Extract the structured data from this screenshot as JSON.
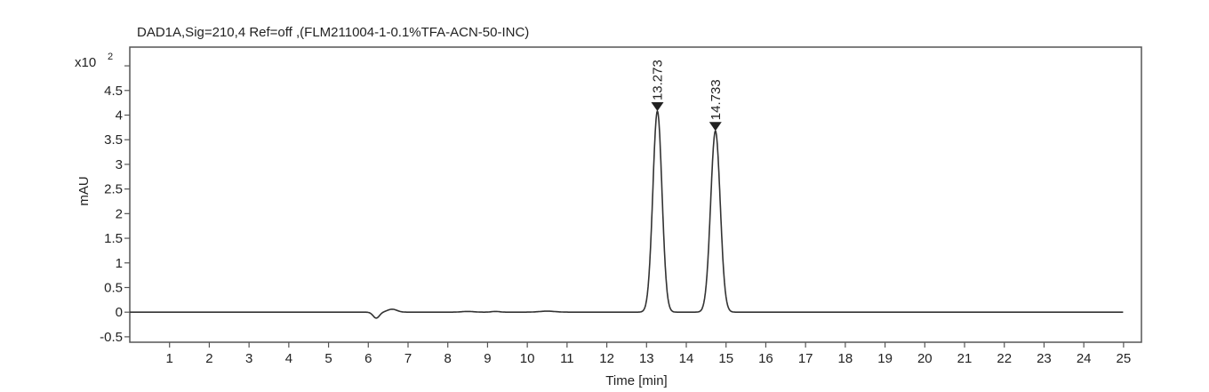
{
  "chart_data": {
    "type": "line",
    "title": "DAD1A,Sig=210,4  Ref=off ,(FLM211004-1-0.1%TFA-ACN-50-INC)",
    "xlabel": "Time [min]",
    "ylabel": "mAU",
    "y_multiplier_label": "x10",
    "y_multiplier_exp": "2",
    "xlim": [
      0,
      25.45
    ],
    "ylim": [
      -0.61,
      5.38
    ],
    "x_ticks": [
      1,
      2,
      3,
      4,
      5,
      6,
      7,
      8,
      9,
      10,
      11,
      12,
      13,
      14,
      15,
      16,
      17,
      18,
      19,
      20,
      21,
      22,
      23,
      24,
      25
    ],
    "y_ticks": [
      -0.5,
      0,
      0.5,
      1,
      1.5,
      2,
      2.5,
      3,
      3.5,
      4,
      4.5
    ],
    "y_tick_labels": [
      "-0.5",
      "0",
      "0.5",
      "1",
      "1.5",
      "2",
      "2.5",
      "3",
      "3.5",
      "4",
      "4.5"
    ],
    "grid": false,
    "line_color": "#333333",
    "peaks": [
      {
        "label": "13.273",
        "rt": 13.273,
        "height": 4.08,
        "sigma": 0.115
      },
      {
        "label": "14.733",
        "rt": 14.733,
        "height": 3.68,
        "sigma": 0.12
      }
    ],
    "baseline_features": [
      {
        "rt": 6.2,
        "height": -0.12,
        "sigma": 0.08
      },
      {
        "rt": 6.6,
        "height": 0.06,
        "sigma": 0.12
      },
      {
        "rt": 8.5,
        "height": 0.015,
        "sigma": 0.15
      },
      {
        "rt": 9.2,
        "height": 0.015,
        "sigma": 0.1
      },
      {
        "rt": 10.5,
        "height": 0.02,
        "sigma": 0.2
      }
    ]
  }
}
